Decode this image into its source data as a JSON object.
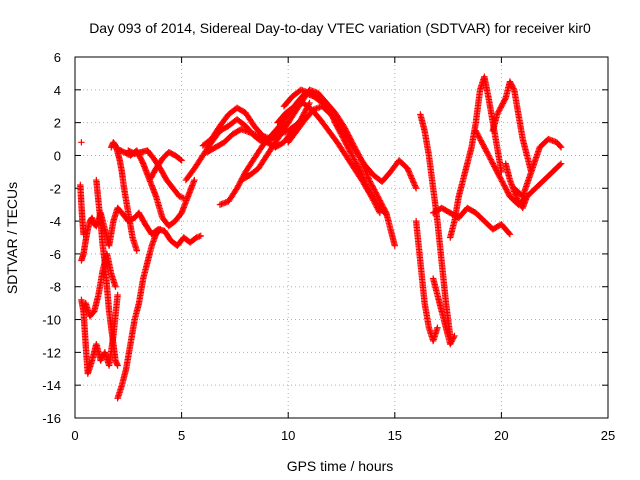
{
  "chart_data": {
    "type": "scatter",
    "title": "Day 093 of 2014, Sidereal Day-to-day VTEC variation (SDTVAR) for receiver kir0",
    "xlabel": "GPS time / hours",
    "ylabel": "SDTVAR / TECUs",
    "xlim": [
      0,
      25
    ],
    "ylim": [
      -16,
      6
    ],
    "xticks": [
      0,
      5,
      10,
      15,
      20,
      25
    ],
    "yticks": [
      -16,
      -14,
      -12,
      -10,
      -8,
      -6,
      -4,
      -2,
      0,
      2,
      4,
      6
    ],
    "grid": true,
    "legend": "none",
    "marker": "+",
    "color": "#ff0000",
    "series": [
      {
        "x": [
          0.3,
          0.4,
          0.5,
          0.6,
          0.7,
          0.8,
          0.9,
          1.0,
          1.1,
          1.2,
          1.4,
          1.6,
          1.8,
          2.0,
          2.2,
          2.5,
          2.8,
          3.0,
          3.3,
          3.6,
          3.9,
          4.2,
          4.5,
          4.8,
          5.1,
          5.4,
          5.7,
          5.9
        ],
        "y": [
          -6.4,
          -6.0,
          -5.2,
          -4.5,
          -4.0,
          -3.8,
          -4.2,
          -4.3,
          -4.0,
          -3.5,
          -4.5,
          -5.5,
          -4.0,
          -3.2,
          -3.5,
          -4.0,
          -3.8,
          -3.5,
          -4.2,
          -4.8,
          -4.5,
          -4.6,
          -5.2,
          -5.5,
          -5.0,
          -5.3,
          -5.0,
          -4.9
        ]
      },
      {
        "x": [
          0.3,
          0.4,
          0.5,
          0.6,
          0.8,
          1.0,
          1.2,
          1.4,
          1.6,
          1.8,
          2.0
        ],
        "y": [
          -8.8,
          -9.5,
          -11.5,
          -13.3,
          -12.5,
          -11.5,
          -12.5,
          -12.0,
          -12.8,
          -11.0,
          -8.5
        ]
      },
      {
        "x": [
          0.5,
          0.7,
          0.9,
          1.1,
          1.3,
          1.5,
          1.7,
          1.9
        ],
        "y": [
          -9.0,
          -9.8,
          -9.5,
          -8.5,
          -7.0,
          -6.0,
          -7.2,
          -8.0
        ]
      },
      {
        "x": [
          0.25,
          0.3,
          0.35,
          0.4
        ],
        "y": [
          -1.8,
          -3.0,
          -4.0,
          -4.8
        ]
      },
      {
        "x": [
          1.0,
          1.1,
          1.2,
          1.3,
          1.4,
          1.5,
          1.6,
          1.7,
          1.8,
          1.9,
          2.0
        ],
        "y": [
          -1.5,
          -2.8,
          -4.0,
          -5.5,
          -6.5,
          -8.0,
          -9.5,
          -10.5,
          -11.5,
          -12.5,
          -12.8
        ]
      },
      {
        "x": [
          1.7,
          1.8,
          1.9,
          2.0,
          2.1,
          2.2,
          2.3,
          2.5,
          2.7,
          2.9
        ],
        "y": [
          0.5,
          0.8,
          0.6,
          0.2,
          -0.3,
          -1.0,
          -2.0,
          -3.5,
          -5.0,
          -5.8
        ]
      },
      {
        "x": [
          2.0,
          2.2,
          2.4,
          2.6,
          2.8,
          3.0,
          3.2,
          3.4,
          3.6,
          3.8,
          4.0
        ],
        "y": [
          -14.8,
          -14.0,
          -13.0,
          -11.5,
          -10.0,
          -9.0,
          -7.5,
          -6.5,
          -5.5,
          -4.8,
          -4.5
        ]
      },
      {
        "x": [
          2.0,
          2.3,
          2.6,
          2.9,
          3.2,
          3.5,
          3.8,
          4.1,
          4.4,
          4.7,
          5.0,
          5.3,
          5.6
        ],
        "y": [
          0.4,
          0.2,
          0.0,
          0.3,
          -0.5,
          -1.5,
          -2.5,
          -3.8,
          -4.3,
          -4.0,
          -3.5,
          -2.5,
          -1.5
        ]
      },
      {
        "x": [
          3.5,
          3.8,
          4.1,
          4.4,
          4.7,
          5.0
        ],
        "y": [
          -1.5,
          -0.8,
          -0.2,
          0.2,
          0.0,
          -0.3
        ]
      },
      {
        "x": [
          2.5,
          2.8,
          3.1,
          3.4,
          3.7,
          4.0,
          4.3,
          4.6,
          4.9,
          5.1
        ],
        "y": [
          0.3,
          0.1,
          0.2,
          0.3,
          -0.2,
          -0.8,
          -1.5,
          -2.0,
          -2.5,
          -2.6
        ]
      },
      {
        "x": [
          5.2,
          5.6,
          6.0,
          6.4,
          6.8,
          7.2,
          7.6,
          8.0,
          8.4,
          8.8,
          9.2,
          9.6,
          10.0
        ],
        "y": [
          -1.5,
          -0.8,
          0.0,
          0.8,
          1.5,
          1.8,
          2.2,
          1.8,
          1.2,
          0.8,
          1.0,
          1.5,
          2.0
        ]
      },
      {
        "x": [
          6.0,
          6.4,
          6.8,
          7.2,
          7.6,
          8.0,
          8.4,
          8.8,
          9.2,
          9.6,
          10.0,
          10.4
        ],
        "y": [
          0.6,
          1.0,
          1.8,
          2.5,
          2.9,
          2.6,
          1.8,
          1.2,
          1.0,
          1.3,
          1.5,
          1.9
        ]
      },
      {
        "x": [
          6.2,
          6.6,
          7.0,
          7.4,
          7.8,
          8.2,
          8.6,
          9.0,
          9.4,
          9.8,
          10.2,
          10.6,
          11.0
        ],
        "y": [
          0.2,
          0.5,
          0.8,
          1.3,
          1.6,
          1.4,
          1.2,
          0.8,
          0.5,
          0.8,
          1.5,
          2.2,
          3.2
        ]
      },
      {
        "x": [
          6.8,
          7.2,
          7.6,
          8.0,
          8.4,
          8.8,
          9.2,
          9.6,
          10.0,
          10.4,
          10.8,
          11.2,
          11.6,
          12.0
        ],
        "y": [
          -3.0,
          -2.8,
          -2.0,
          -1.0,
          -0.2,
          0.6,
          1.2,
          1.8,
          2.5,
          3.2,
          3.8,
          3.6,
          3.2,
          2.6
        ]
      },
      {
        "x": [
          7.8,
          8.2,
          8.6,
          9.0,
          9.4,
          9.8,
          10.2,
          10.6,
          11.0,
          11.4,
          11.8,
          12.2,
          12.6,
          13.0,
          13.4,
          13.8,
          14.2,
          14.6
        ],
        "y": [
          -1.5,
          -1.2,
          -0.8,
          0.0,
          0.8,
          1.6,
          2.4,
          3.2,
          4.0,
          3.8,
          3.2,
          2.0,
          1.0,
          0.0,
          -1.0,
          -2.2,
          -3.0,
          -3.6
        ]
      },
      {
        "x": [
          9.8,
          10.2,
          10.6,
          11.0,
          11.4,
          11.8,
          12.2,
          12.6,
          13.0,
          13.4,
          13.8,
          14.2,
          14.6,
          15.0
        ],
        "y": [
          3.0,
          3.6,
          4.0,
          3.8,
          3.5,
          3.2,
          2.6,
          1.8,
          0.8,
          -0.2,
          -1.5,
          -2.5,
          -3.5,
          -5.5
        ]
      },
      {
        "x": [
          9.5,
          9.9,
          10.3,
          10.7,
          11.1,
          11.5,
          11.9,
          12.3,
          12.7,
          13.1,
          13.5,
          13.9,
          14.3
        ],
        "y": [
          2.0,
          2.6,
          3.0,
          3.2,
          2.8,
          2.2,
          1.5,
          0.8,
          0.0,
          -0.8,
          -1.6,
          -2.5,
          -3.5
        ]
      },
      {
        "x": [
          10.0,
          10.4,
          10.8,
          11.2,
          11.6,
          12.0,
          12.4,
          12.8,
          13.2,
          13.6,
          14.0,
          14.4,
          14.8,
          15.2,
          15.6,
          16.0
        ],
        "y": [
          0.8,
          1.5,
          2.2,
          2.8,
          3.0,
          2.5,
          1.8,
          1.0,
          0.2,
          -0.6,
          -1.2,
          -1.6,
          -1.0,
          -0.3,
          -0.8,
          -2.0
        ]
      },
      {
        "x": [
          16.2,
          16.4,
          16.6,
          16.8,
          17.0,
          17.2,
          17.4,
          17.6
        ],
        "y": [
          2.5,
          1.5,
          0.0,
          -2.0,
          -4.0,
          -6.5,
          -9.0,
          -11.0
        ]
      },
      {
        "x": [
          16.0,
          16.2,
          16.4,
          16.6,
          16.8,
          17.0
        ],
        "y": [
          -4.0,
          -6.5,
          -9.0,
          -10.5,
          -11.3,
          -10.5
        ]
      },
      {
        "x": [
          16.8,
          17.0,
          17.2,
          17.4,
          17.6,
          17.8
        ],
        "y": [
          -7.5,
          -8.5,
          -9.5,
          -10.5,
          -11.5,
          -11.0
        ]
      },
      {
        "x": [
          16.8,
          17.2,
          17.6,
          18.0,
          18.4,
          18.8,
          19.2,
          19.6,
          20.0,
          20.4
        ],
        "y": [
          -3.5,
          -3.2,
          -3.5,
          -3.8,
          -3.2,
          -3.5,
          -4.0,
          -4.5,
          -4.2,
          -4.8
        ]
      },
      {
        "x": [
          17.6,
          17.8,
          18.0,
          18.2,
          18.4,
          18.6,
          18.8,
          19.0,
          19.2,
          19.4,
          19.6,
          19.8,
          20.0
        ],
        "y": [
          -5.0,
          -4.0,
          -2.5,
          -1.5,
          -0.5,
          0.5,
          2.0,
          4.0,
          4.8,
          3.5,
          2.0,
          0.5,
          -1.0
        ]
      },
      {
        "x": [
          19.6,
          19.8,
          20.0,
          20.2,
          20.4,
          20.6,
          20.8,
          21.0,
          21.2,
          21.4
        ],
        "y": [
          1.5,
          2.5,
          3.0,
          3.5,
          4.5,
          4.0,
          2.5,
          1.0,
          0.0,
          -1.0
        ]
      },
      {
        "x": [
          18.8,
          19.2,
          19.6,
          20.0,
          20.4,
          20.8,
          21.2,
          21.6,
          22.0,
          22.4,
          22.8
        ],
        "y": [
          1.5,
          0.5,
          -0.5,
          -1.5,
          -2.5,
          -3.0,
          -2.5,
          -2.0,
          -1.5,
          -1.0,
          -0.5
        ]
      },
      {
        "x": [
          20.6,
          21.0,
          21.4,
          21.8,
          22.2,
          22.6,
          22.8
        ],
        "y": [
          -2.0,
          -2.5,
          -1.0,
          0.5,
          1.0,
          0.8,
          0.5
        ]
      },
      {
        "x": [
          20.2,
          20.4,
          20.6,
          20.8,
          21.0,
          21.2
        ],
        "y": [
          -0.5,
          -1.5,
          -2.2,
          -2.8,
          -3.2,
          -2.5
        ]
      }
    ],
    "isolated_points": {
      "x": [
        0.3
      ],
      "y": [
        0.8
      ]
    }
  }
}
